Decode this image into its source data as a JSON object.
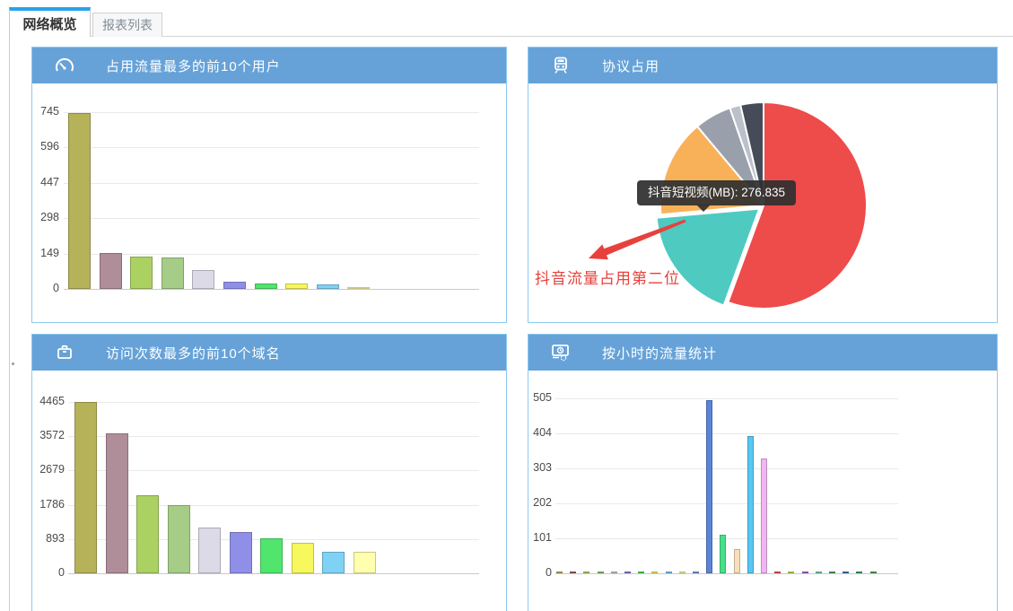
{
  "tabs": [
    {
      "label": "网络概览",
      "active": true
    },
    {
      "label": "报表列表",
      "active": false
    }
  ],
  "panels": {
    "top_users": {
      "title": "占用流量最多的前10个用户",
      "icon": "gauge-icon"
    },
    "protocol": {
      "title": "协议占用",
      "icon": "train-icon",
      "tooltip": "抖音短视频(MB): 276.835",
      "annotation": "抖音流量占用第二位"
    },
    "top_domains": {
      "title": "访问次数最多的前10个域名",
      "icon": "briefcase-icon"
    },
    "hourly": {
      "title": "按小时的流量统计",
      "icon": "monitor-clock-icon"
    }
  },
  "colors": {
    "header_blue": "#66a2d8",
    "panel_border": "#8ccaf2",
    "tab_accent": "#28a3e9",
    "annotation_red": "#e8413c",
    "tooltip_bg": "#2f2f2f"
  },
  "chart_data": [
    {
      "id": "top_users",
      "type": "bar",
      "title": "占用流量最多的前10个用户",
      "ylim": [
        0,
        745
      ],
      "yticks": [
        745,
        596,
        447,
        298,
        149,
        0
      ],
      "grid": true,
      "values": [
        740,
        152,
        136,
        133,
        79,
        30,
        24,
        23,
        19,
        3
      ],
      "colors": [
        "#b5b25a",
        "#af8d99",
        "#abd163",
        "#a6cd87",
        "#dddae8",
        "#908fe8",
        "#51e56d",
        "#f7f75e",
        "#7fd2f5",
        "#ffffad"
      ]
    },
    {
      "id": "protocol",
      "type": "pie",
      "title": "协议占用",
      "unit": "MB",
      "slices": [
        {
          "label": "",
          "percent": 55.6,
          "color": "#ee4b4b"
        },
        {
          "label": "抖音短视频",
          "percent": 18.0,
          "value_mb": 276.835,
          "color": "#4ecac1",
          "exploded": true
        },
        {
          "label": "",
          "percent": 15.3,
          "color": "#f9b159"
        },
        {
          "label": "",
          "percent": 5.8,
          "color": "#99a0ac"
        },
        {
          "label": "",
          "percent": 1.7,
          "color": "#bbc1ca"
        },
        {
          "label": "",
          "percent": 3.6,
          "color": "#454c58"
        }
      ],
      "tooltip": "抖音短视频(MB): 276.835",
      "annotation": "抖音流量占用第二位"
    },
    {
      "id": "top_domains",
      "type": "bar",
      "title": "访问次数最多的前10个域名",
      "ylim": [
        0,
        4465
      ],
      "yticks": [
        4465,
        3572,
        2679,
        1786,
        893,
        0
      ],
      "grid": true,
      "values": [
        4460,
        3650,
        2040,
        1780,
        1195,
        1080,
        915,
        800,
        565,
        560
      ],
      "colors": [
        "#b5b25a",
        "#af8d99",
        "#abd163",
        "#a6cd87",
        "#dddae8",
        "#908fe8",
        "#51e56d",
        "#f7f75e",
        "#7fd2f5",
        "#ffffad"
      ]
    },
    {
      "id": "hourly",
      "type": "bar",
      "title": "按小时的流量统计",
      "ylim": [
        0,
        505
      ],
      "yticks": [
        505,
        404,
        303,
        202,
        101,
        0
      ],
      "grid": true,
      "values": [
        5,
        5,
        5,
        5,
        5,
        5,
        5,
        5,
        5,
        5,
        5,
        500,
        112,
        70,
        395,
        332,
        5,
        5,
        5,
        5,
        5,
        5,
        5,
        5
      ],
      "colors": [
        "#b5b25a",
        "#a06060",
        "#abd163",
        "#8cc46a",
        "#ccc9d6",
        "#7f7ee0",
        "#4ade68",
        "#f2f25c",
        "#6fcdf2",
        "#fbfb9e",
        "#6f9ce8",
        "#5b84d8",
        "#46e089",
        "#f6dfba",
        "#57c7f2",
        "#f0b6f2",
        "#f25555",
        "#b9e44f",
        "#b066d9",
        "#6fd0b3",
        "#49a96a",
        "#4a79b8",
        "#3f9e72",
        "#4ea85e"
      ]
    }
  ]
}
